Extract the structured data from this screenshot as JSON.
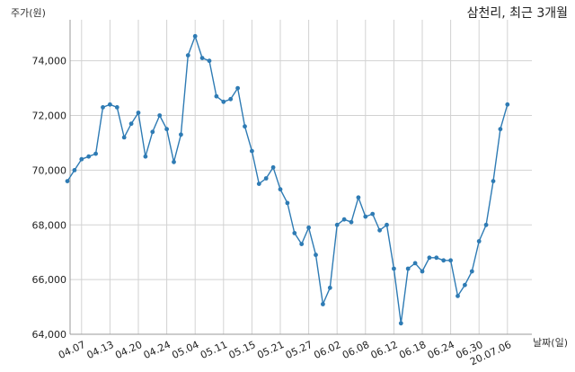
{
  "chart_data": {
    "type": "line",
    "title": "삼천리, 최근 3개월",
    "ylabel": "주가(원)",
    "xlabel": "날짜(일)",
    "ylim": [
      64000,
      75500
    ],
    "grid": true,
    "line_color": "#2e7bb4",
    "yticks": [
      64000,
      66000,
      68000,
      70000,
      72000,
      74000
    ],
    "ytick_labels": [
      "64,000",
      "66,000",
      "68,000",
      "70,000",
      "72,000",
      "74,000"
    ],
    "x": [
      "2020-04-03",
      "2020-04-06",
      "2020-04-07",
      "2020-04-08",
      "2020-04-09",
      "2020-04-10",
      "2020-04-13",
      "2020-04-14",
      "2020-04-16",
      "2020-04-17",
      "2020-04-20",
      "2020-04-21",
      "2020-04-22",
      "2020-04-23",
      "2020-04-24",
      "2020-04-27",
      "2020-04-28",
      "2020-04-29",
      "2020-05-04",
      "2020-05-06",
      "2020-05-07",
      "2020-05-08",
      "2020-05-11",
      "2020-05-12",
      "2020-05-13",
      "2020-05-14",
      "2020-05-15",
      "2020-05-18",
      "2020-05-19",
      "2020-05-20",
      "2020-05-21",
      "2020-05-22",
      "2020-05-25",
      "2020-05-26",
      "2020-05-27",
      "2020-05-28",
      "2020-05-29",
      "2020-06-01",
      "2020-06-02",
      "2020-06-03",
      "2020-06-04",
      "2020-06-05",
      "2020-06-08",
      "2020-06-09",
      "2020-06-10",
      "2020-06-11",
      "2020-06-12",
      "2020-06-15",
      "2020-06-16",
      "2020-06-17",
      "2020-06-18",
      "2020-06-19",
      "2020-06-22",
      "2020-06-23",
      "2020-06-24",
      "2020-06-25",
      "2020-06-26",
      "2020-06-29",
      "2020-06-30",
      "2020-07-01",
      "2020-07-02",
      "2020-07-03",
      "2020-07-06"
    ],
    "values": [
      69600,
      70000,
      70400,
      70500,
      70600,
      72300,
      72400,
      72300,
      71200,
      71700,
      72100,
      70500,
      71400,
      72000,
      71500,
      70300,
      71300,
      74200,
      74900,
      74100,
      74000,
      72700,
      72500,
      72600,
      73000,
      71600,
      70700,
      69500,
      69700,
      70100,
      69300,
      68800,
      67700,
      67300,
      67900,
      66900,
      65100,
      65700,
      68000,
      68200,
      68100,
      69000,
      68300,
      68400,
      67800,
      68000,
      66400,
      64400,
      66400,
      66600,
      66300,
      66800,
      66800,
      66700,
      66700,
      65400,
      65800,
      66300,
      67400,
      68000,
      69600,
      71500,
      72400
    ],
    "xticks": [
      "2020-04-07",
      "2020-04-13",
      "2020-04-20",
      "2020-04-24",
      "2020-05-04",
      "2020-05-11",
      "2020-05-15",
      "2020-05-21",
      "2020-05-27",
      "2020-06-02",
      "2020-06-08",
      "2020-06-12",
      "2020-06-18",
      "2020-06-24",
      "2020-06-30",
      "2020-07-06"
    ],
    "xtick_labels": [
      "04.07",
      "04.13",
      "04.20",
      "04.24",
      "05.04",
      "05.11",
      "05.15",
      "05.21",
      "05.27",
      "06.02",
      "06.08",
      "06.12",
      "06.18",
      "06.24",
      "06.30",
      "20.07.06"
    ]
  }
}
